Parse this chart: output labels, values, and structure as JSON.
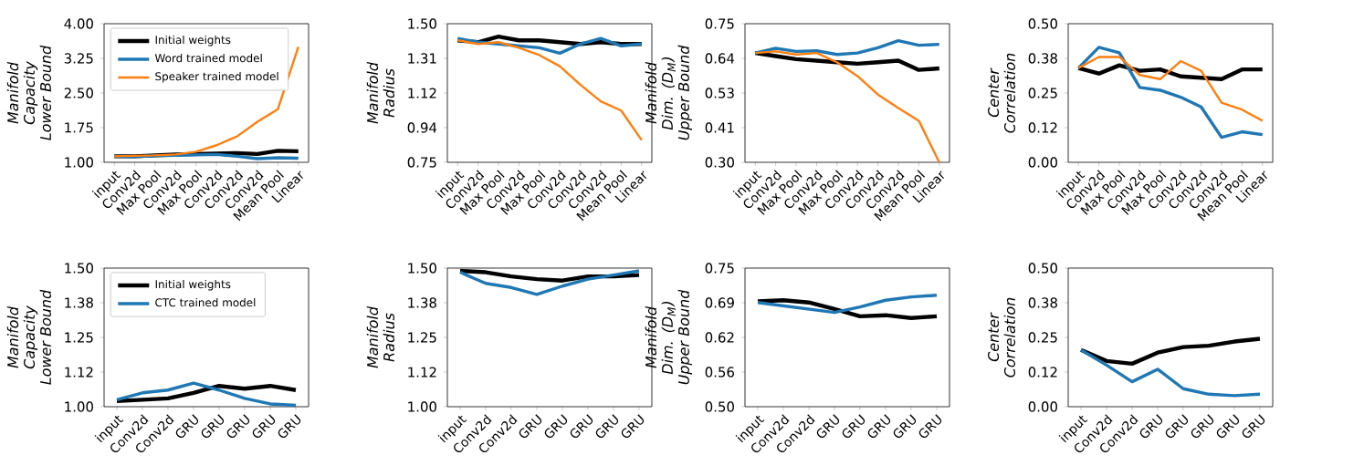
{
  "chart_data": [
    {
      "type": "line",
      "ylabel": "Manifold Capacity Lower Bound",
      "categories": [
        "input",
        "Conv2d",
        "Max Pool",
        "Conv2d",
        "Max Pool",
        "Conv2d",
        "Conv2d",
        "Conv2d",
        "Mean Pool",
        "Linear"
      ],
      "ylim": [
        1.0,
        4.0
      ],
      "yticks": [
        {
          "value": 1.0,
          "label": "1.00"
        },
        {
          "value": 1.75,
          "label": "1.75"
        },
        {
          "value": 2.5,
          "label": "2.50"
        },
        {
          "value": 3.25,
          "label": "3.25"
        },
        {
          "value": 4.0,
          "label": "4.00"
        }
      ],
      "legend": "top left",
      "series": [
        {
          "name": "Initial weights",
          "color": "#000000",
          "values": [
            1.13,
            1.13,
            1.15,
            1.17,
            1.18,
            1.19,
            1.2,
            1.18,
            1.25,
            1.24
          ]
        },
        {
          "name": "Word trained model",
          "color": "#1f77b4",
          "values": [
            1.13,
            1.12,
            1.14,
            1.15,
            1.16,
            1.17,
            1.13,
            1.08,
            1.1,
            1.09
          ]
        },
        {
          "name": "Speaker trained model",
          "color": "#ff7f0e",
          "values": [
            1.13,
            1.14,
            1.15,
            1.17,
            1.23,
            1.37,
            1.56,
            1.88,
            2.15,
            3.5
          ]
        }
      ]
    },
    {
      "type": "line",
      "ylabel": "Manifold Radius",
      "categories": [
        "input",
        "Conv2d",
        "Max Pool",
        "Conv2d",
        "Max Pool",
        "Conv2d",
        "Conv2d",
        "Conv2d",
        "Mean Pool",
        "Linear"
      ],
      "ylim": [
        0.75,
        1.5
      ],
      "yticks": [
        {
          "value": 0.75,
          "label": "0.75"
        },
        {
          "value": 0.9375,
          "label": "0.94"
        },
        {
          "value": 1.125,
          "label": "1.12"
        },
        {
          "value": 1.3125,
          "label": "1.31"
        },
        {
          "value": 1.5,
          "label": "1.50"
        }
      ],
      "series": [
        {
          "color": "#000000",
          "values": [
            1.41,
            1.4,
            1.43,
            1.41,
            1.41,
            1.4,
            1.39,
            1.4,
            1.39,
            1.39
          ]
        },
        {
          "color": "#1f77b4",
          "values": [
            1.42,
            1.4,
            1.39,
            1.38,
            1.37,
            1.34,
            1.39,
            1.42,
            1.38,
            1.39
          ]
        },
        {
          "color": "#ff7f0e",
          "values": [
            1.41,
            1.39,
            1.4,
            1.37,
            1.33,
            1.27,
            1.17,
            1.08,
            1.03,
            0.87
          ]
        }
      ]
    },
    {
      "type": "line",
      "ylabel": "Manifold Dim. (D$_{M}$) Upper Bound",
      "categories": [
        "input",
        "Conv2d",
        "Max Pool",
        "Conv2d",
        "Max Pool",
        "Conv2d",
        "Conv2d",
        "Conv2d",
        "Mean Pool",
        "Linear"
      ],
      "ylim": [
        0.3,
        0.75
      ],
      "yticks": [
        {
          "value": 0.3,
          "label": "0.30"
        },
        {
          "value": 0.4125,
          "label": "0.41"
        },
        {
          "value": 0.525,
          "label": "0.53"
        },
        {
          "value": 0.6375,
          "label": "0.64"
        },
        {
          "value": 0.75,
          "label": "0.75"
        }
      ],
      "series": [
        {
          "color": "#000000",
          "values": [
            0.655,
            0.645,
            0.635,
            0.63,
            0.625,
            0.62,
            0.625,
            0.63,
            0.6,
            0.605
          ]
        },
        {
          "color": "#1f77b4",
          "values": [
            0.655,
            0.67,
            0.66,
            0.662,
            0.65,
            0.655,
            0.672,
            0.695,
            0.68,
            0.683
          ]
        },
        {
          "color": "#ff7f0e",
          "values": [
            0.655,
            0.66,
            0.65,
            0.655,
            0.625,
            0.58,
            0.52,
            0.476,
            0.435,
            0.3
          ]
        }
      ]
    },
    {
      "type": "line",
      "ylabel": "Center Correlation",
      "categories": [
        "input",
        "Conv2d",
        "Max Pool",
        "Conv2d",
        "Max Pool",
        "Conv2d",
        "Conv2d",
        "Conv2d",
        "Mean Pool",
        "Linear"
      ],
      "ylim": [
        0.0,
        0.5
      ],
      "yticks": [
        {
          "value": 0.0,
          "label": "0.00"
        },
        {
          "value": 0.125,
          "label": "0.12"
        },
        {
          "value": 0.25,
          "label": "0.25"
        },
        {
          "value": 0.375,
          "label": "0.38"
        },
        {
          "value": 0.5,
          "label": "0.50"
        }
      ],
      "series": [
        {
          "color": "#000000",
          "values": [
            0.34,
            0.32,
            0.35,
            0.33,
            0.335,
            0.31,
            0.305,
            0.3,
            0.335,
            0.335
          ]
        },
        {
          "color": "#1f77b4",
          "values": [
            0.34,
            0.415,
            0.395,
            0.27,
            0.26,
            0.235,
            0.2,
            0.09,
            0.11,
            0.1
          ]
        },
        {
          "color": "#ff7f0e",
          "values": [
            0.34,
            0.38,
            0.38,
            0.315,
            0.3,
            0.365,
            0.33,
            0.215,
            0.19,
            0.15
          ]
        }
      ]
    },
    {
      "type": "line",
      "ylabel": "Manifold Capacity Lower Bound",
      "categories": [
        "input",
        "Conv2d",
        "Conv2d",
        "GRU",
        "GRU",
        "GRU",
        "GRU",
        "GRU"
      ],
      "ylim": [
        1.0,
        1.5
      ],
      "yticks": [
        {
          "value": 1.0,
          "label": "1.00"
        },
        {
          "value": 1.125,
          "label": "1.12"
        },
        {
          "value": 1.25,
          "label": "1.25"
        },
        {
          "value": 1.375,
          "label": "1.38"
        },
        {
          "value": 1.5,
          "label": "1.50"
        }
      ],
      "legend": "top left",
      "series": [
        {
          "name": "Initial weights",
          "color": "#000000",
          "values": [
            1.02,
            1.025,
            1.03,
            1.05,
            1.075,
            1.065,
            1.075,
            1.06
          ]
        },
        {
          "name": "CTC trained model",
          "color": "#1f77b4",
          "values": [
            1.025,
            1.05,
            1.06,
            1.085,
            1.06,
            1.03,
            1.01,
            1.005
          ]
        }
      ]
    },
    {
      "type": "line",
      "ylabel": "Manifold Radius",
      "categories": [
        "input",
        "Conv2d",
        "Conv2d",
        "GRU",
        "GRU",
        "GRU",
        "GRU",
        "GRU"
      ],
      "ylim": [
        1.0,
        1.5
      ],
      "yticks": [
        {
          "value": 1.0,
          "label": "1.00"
        },
        {
          "value": 1.125,
          "label": "1.12"
        },
        {
          "value": 1.25,
          "label": "1.25"
        },
        {
          "value": 1.375,
          "label": "1.38"
        },
        {
          "value": 1.5,
          "label": "1.50"
        }
      ],
      "series": [
        {
          "color": "#000000",
          "values": [
            1.49,
            1.485,
            1.47,
            1.46,
            1.455,
            1.47,
            1.47,
            1.475
          ]
        },
        {
          "color": "#1f77b4",
          "values": [
            1.485,
            1.445,
            1.43,
            1.405,
            1.435,
            1.46,
            1.475,
            1.49
          ]
        }
      ]
    },
    {
      "type": "line",
      "ylabel": "Manifold Dim. (D$_{M}$) Upper Bound",
      "categories": [
        "input",
        "Conv2d",
        "Conv2d",
        "GRU",
        "GRU",
        "GRU",
        "GRU",
        "GRU"
      ],
      "ylim": [
        0.5,
        0.75
      ],
      "yticks": [
        {
          "value": 0.5,
          "label": "0.50"
        },
        {
          "value": 0.5625,
          "label": "0.56"
        },
        {
          "value": 0.625,
          "label": "0.62"
        },
        {
          "value": 0.6875,
          "label": "0.69"
        },
        {
          "value": 0.75,
          "label": "0.75"
        }
      ],
      "series": [
        {
          "color": "#000000",
          "values": [
            0.69,
            0.692,
            0.688,
            0.676,
            0.663,
            0.665,
            0.66,
            0.663
          ]
        },
        {
          "color": "#1f77b4",
          "values": [
            0.688,
            0.682,
            0.676,
            0.67,
            0.68,
            0.692,
            0.698,
            0.701
          ]
        }
      ]
    },
    {
      "type": "line",
      "ylabel": "Center Correlation",
      "categories": [
        "input",
        "Conv2d",
        "Conv2d",
        "GRU",
        "GRU",
        "GRU",
        "GRU",
        "GRU"
      ],
      "ylim": [
        0.0,
        0.5
      ],
      "yticks": [
        {
          "value": 0.0,
          "label": "0.00"
        },
        {
          "value": 0.125,
          "label": "0.12"
        },
        {
          "value": 0.25,
          "label": "0.25"
        },
        {
          "value": 0.375,
          "label": "0.38"
        },
        {
          "value": 0.5,
          "label": "0.50"
        }
      ],
      "series": [
        {
          "color": "#000000",
          "values": [
            0.205,
            0.165,
            0.155,
            0.195,
            0.215,
            0.22,
            0.235,
            0.245
          ]
        },
        {
          "color": "#1f77b4",
          "values": [
            0.205,
            0.15,
            0.09,
            0.135,
            0.065,
            0.045,
            0.04,
            0.045
          ]
        }
      ]
    }
  ]
}
